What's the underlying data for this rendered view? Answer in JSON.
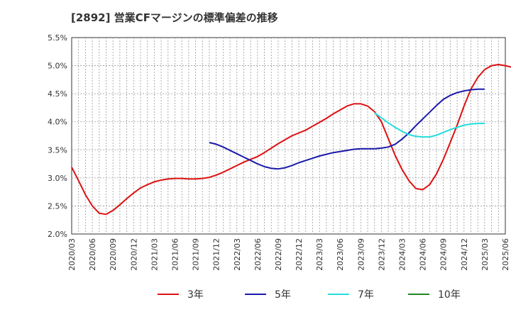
{
  "chart_data": {
    "type": "line",
    "title": "[2892]  営業CFマージンの標準偏差の推移",
    "xlabel": "",
    "ylabel": "",
    "ylim": [
      0.02,
      0.055
    ],
    "y_ticks": [
      "5.5%",
      "5.0%",
      "4.5%",
      "4.0%",
      "3.5%",
      "3.0%",
      "2.5%",
      "2.0%"
    ],
    "x_ticks": [
      "2020/03",
      "2020/06",
      "2020/09",
      "2020/12",
      "2021/03",
      "2021/06",
      "2021/09",
      "2021/12",
      "2022/03",
      "2022/06",
      "2022/09",
      "2022/12",
      "2023/03",
      "2023/06",
      "2023/09",
      "2023/12",
      "2024/03",
      "2024/06",
      "2024/09",
      "2024/12",
      "2025/03",
      "2025/06"
    ],
    "grid": true,
    "legend_position": "bottom",
    "series": [
      {
        "name": "3年",
        "color": "#dd1111",
        "start": "2020/03",
        "values": [
          3.19,
          2.95,
          2.7,
          2.5,
          2.37,
          2.35,
          2.42,
          2.52,
          2.63,
          2.73,
          2.82,
          2.88,
          2.93,
          2.96,
          2.98,
          2.99,
          2.99,
          2.98,
          2.98,
          2.99,
          3.01,
          3.05,
          3.1,
          3.16,
          3.22,
          3.28,
          3.33,
          3.38,
          3.45,
          3.53,
          3.61,
          3.68,
          3.75,
          3.8,
          3.85,
          3.92,
          3.99,
          4.06,
          4.14,
          4.21,
          4.28,
          4.32,
          4.32,
          4.28,
          4.18,
          4.0,
          3.7,
          3.4,
          3.15,
          2.95,
          2.81,
          2.79,
          2.88,
          3.07,
          3.33,
          3.63,
          3.94,
          4.28,
          4.58,
          4.79,
          4.93,
          5.0,
          5.02,
          5.0,
          4.97
        ]
      },
      {
        "name": "5年",
        "color": "#1a1aaa",
        "start": "2021/11",
        "values": [
          3.63,
          3.6,
          3.55,
          3.49,
          3.43,
          3.37,
          3.31,
          3.25,
          3.2,
          3.17,
          3.16,
          3.18,
          3.22,
          3.27,
          3.31,
          3.35,
          3.39,
          3.42,
          3.45,
          3.47,
          3.49,
          3.51,
          3.52,
          3.52,
          3.52,
          3.53,
          3.55,
          3.6,
          3.69,
          3.8,
          3.93,
          4.05,
          4.17,
          4.29,
          4.4,
          4.47,
          4.52,
          4.55,
          4.57,
          4.58,
          4.58
        ]
      },
      {
        "name": "7年",
        "color": "#22dddd",
        "start": "2023/11",
        "values": [
          4.16,
          4.07,
          3.98,
          3.9,
          3.83,
          3.77,
          3.74,
          3.73,
          3.73,
          3.76,
          3.81,
          3.86,
          3.9,
          3.94,
          3.96,
          3.97,
          3.97
        ]
      },
      {
        "name": "10年",
        "color": "#228822",
        "start": "",
        "values": []
      }
    ]
  }
}
